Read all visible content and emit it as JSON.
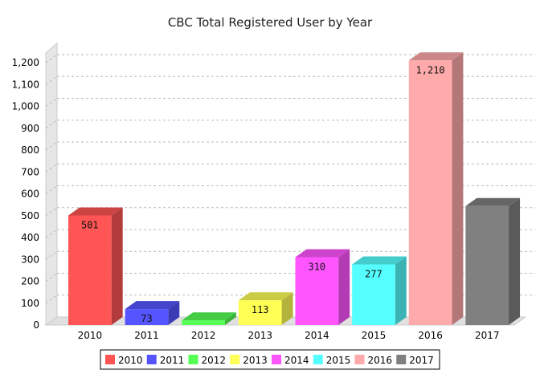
{
  "chart_data": {
    "type": "bar",
    "title": "CBC Total Registered User by Year",
    "xlabel": "",
    "ylabel": "",
    "categories": [
      "2010",
      "2011",
      "2012",
      "2013",
      "2014",
      "2015",
      "2016",
      "2017"
    ],
    "values": [
      501,
      73,
      21,
      113,
      310,
      277,
      1210,
      544
    ],
    "data_labels": [
      "501",
      "73",
      "",
      "113",
      "310",
      "277",
      "1,210",
      ""
    ],
    "y_ticks": [
      "0",
      "100",
      "200",
      "300",
      "400",
      "500",
      "600",
      "700",
      "800",
      "900",
      "1,000",
      "1,100",
      "1,200"
    ],
    "ylim": [
      0,
      1200
    ],
    "grid": true,
    "legend_position": "bottom",
    "colors": [
      "#ff5555",
      "#5555ff",
      "#55ff55",
      "#ffff55",
      "#ff55ff",
      "#55ffff",
      "#ffaaaa",
      "#808080"
    ],
    "style": "3d"
  }
}
